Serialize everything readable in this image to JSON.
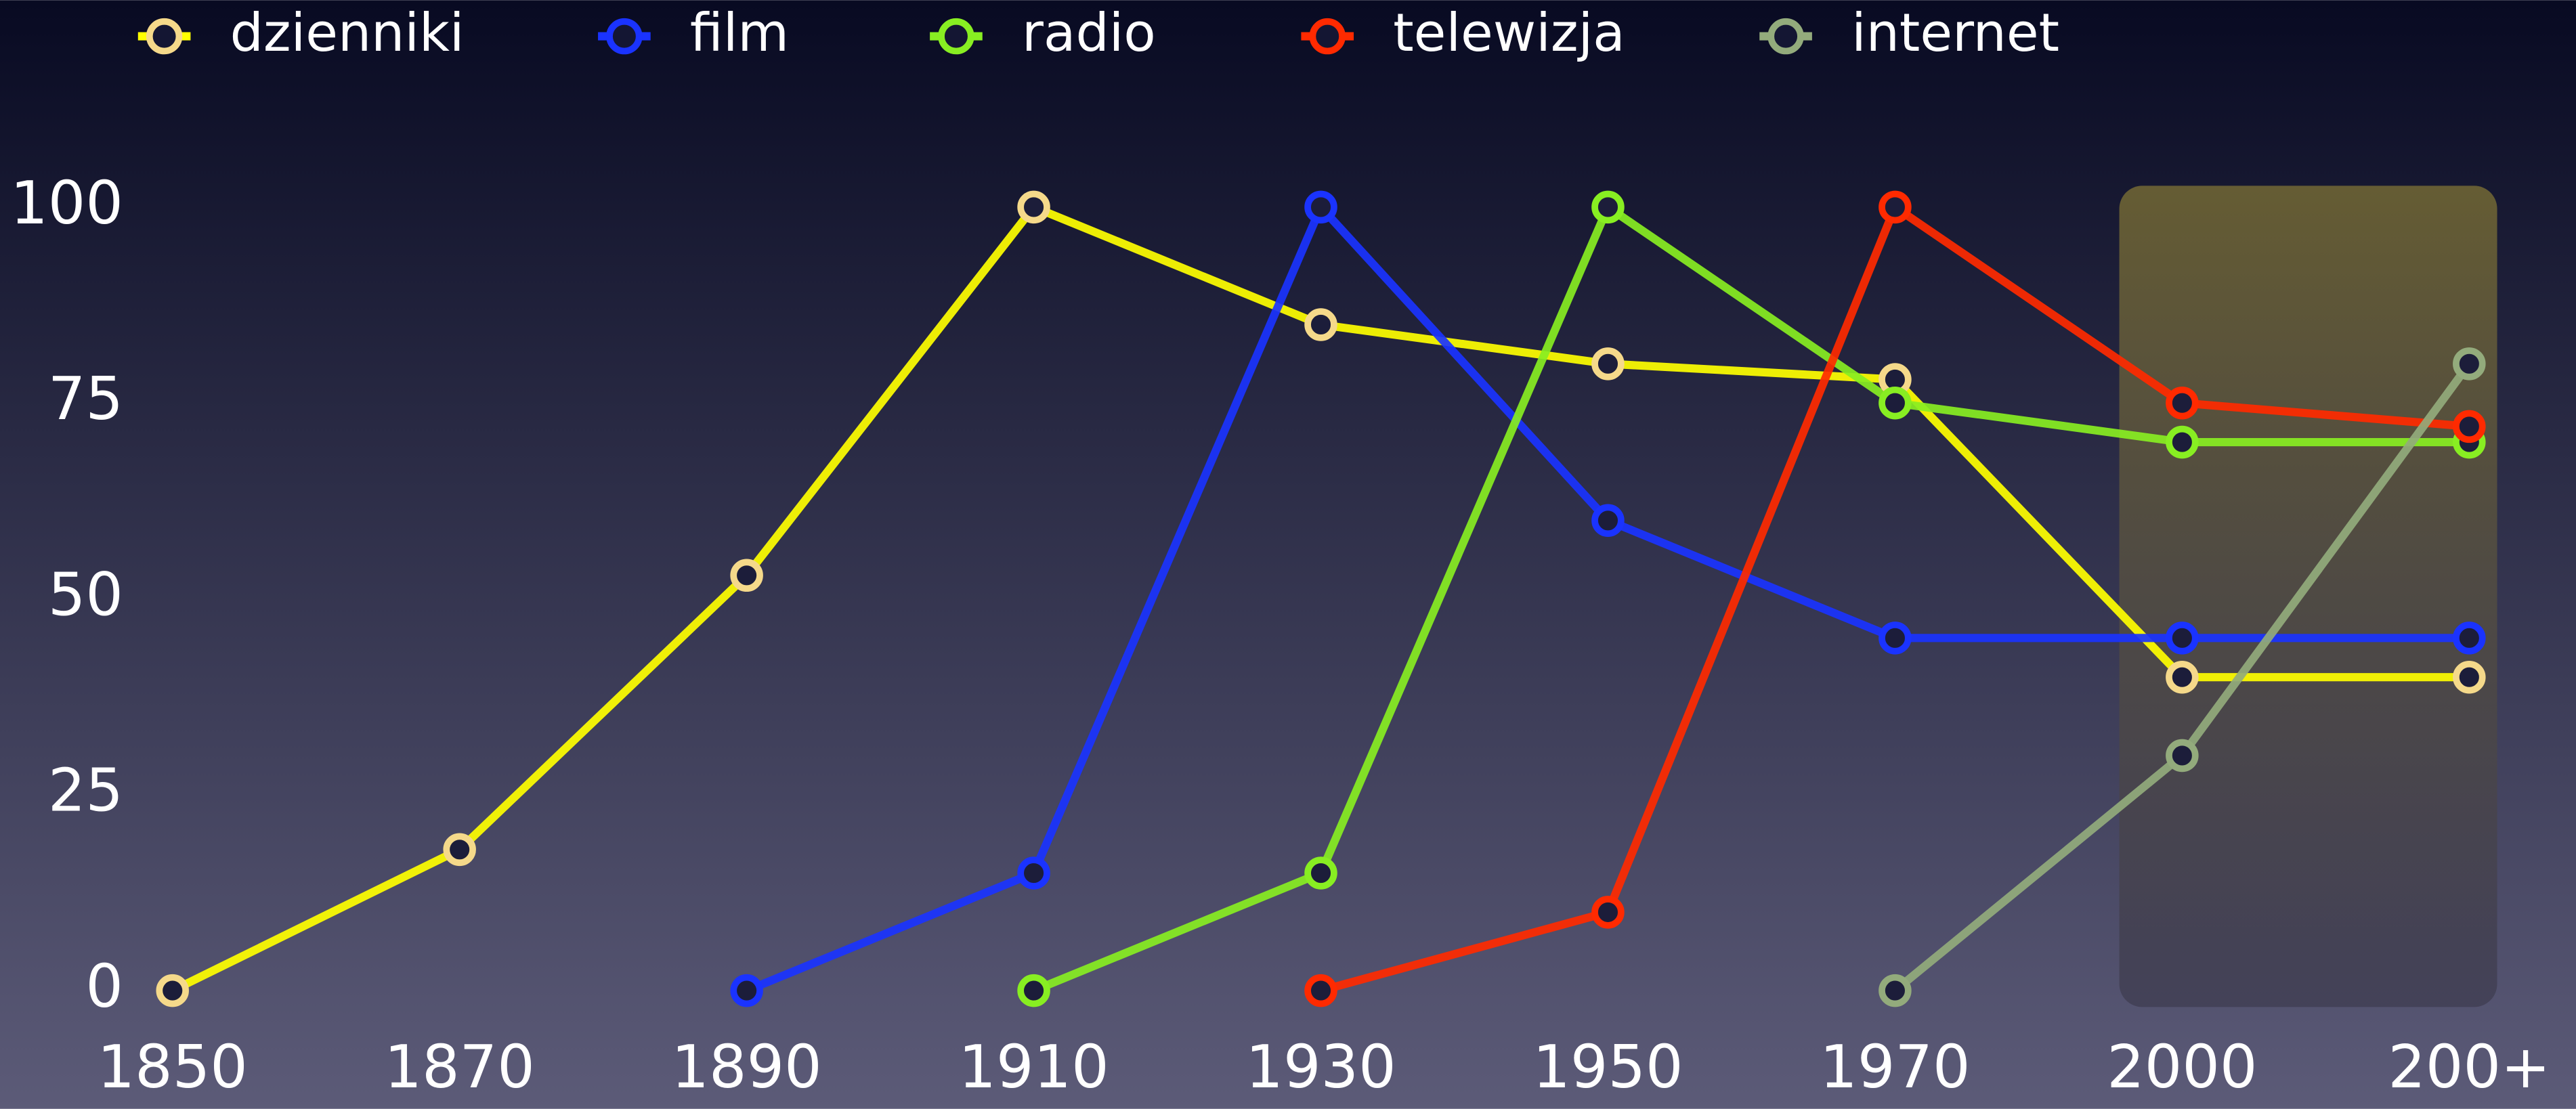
{
  "chart_data": {
    "type": "line",
    "categories": [
      "1850",
      "1870",
      "1890",
      "1910",
      "1930",
      "1950",
      "1970",
      "2000",
      "200+"
    ],
    "series": [
      {
        "name": "dzienniki",
        "color": "#ffff00",
        "marker_color": "#f5d98a",
        "values": [
          0,
          18,
          53,
          100,
          85,
          80,
          78,
          40,
          40
        ]
      },
      {
        "name": "film",
        "color": "#1a33ff",
        "values": [
          null,
          null,
          0,
          15,
          100,
          60,
          45,
          45,
          45
        ]
      },
      {
        "name": "radio",
        "color": "#88ee22",
        "values": [
          null,
          null,
          null,
          0,
          15,
          100,
          75,
          70,
          70
        ]
      },
      {
        "name": "telewizja",
        "color": "#ff2a00",
        "values": [
          null,
          null,
          null,
          null,
          0,
          10,
          100,
          75,
          72
        ]
      },
      {
        "name": "internet",
        "color": "#93ab7c",
        "values": [
          null,
          null,
          null,
          null,
          null,
          null,
          0,
          30,
          80
        ]
      }
    ],
    "ylim": [
      0,
      100
    ],
    "yticks": [
      0,
      25,
      50,
      75,
      100
    ],
    "legend": "top"
  }
}
